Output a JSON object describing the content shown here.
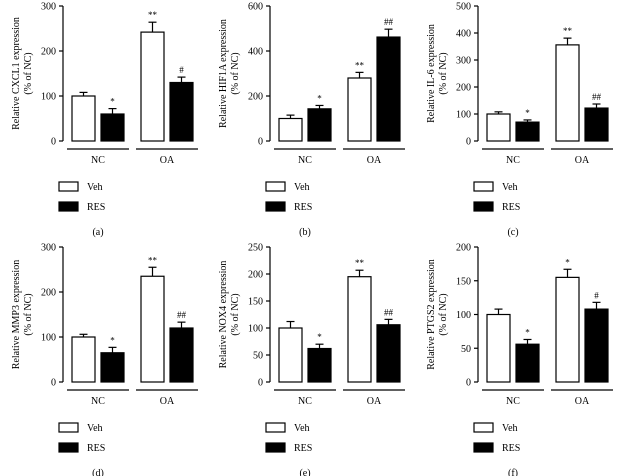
{
  "legend": {
    "veh_label": "Veh",
    "res_label": "RES"
  },
  "colors": {
    "veh": "#ffffff",
    "res": "#000000",
    "axis": "#000000"
  },
  "chart_data": [
    {
      "type": "bar",
      "panel_label": "(a)",
      "ylabel": [
        "Relative CXCL1 expression",
        "(% of NC)"
      ],
      "ylim": [
        0,
        300
      ],
      "yticks": [
        0,
        100,
        200,
        300
      ],
      "groups": [
        "NC",
        "OA"
      ],
      "series": [
        {
          "name": "Veh",
          "values": [
            100,
            242
          ],
          "errors": [
            8,
            22
          ],
          "marks": [
            "",
            "**"
          ]
        },
        {
          "name": "RES",
          "values": [
            60,
            130
          ],
          "errors": [
            12,
            12
          ],
          "marks": [
            "*",
            "#"
          ]
        }
      ]
    },
    {
      "type": "bar",
      "panel_label": "(b)",
      "ylabel": [
        "Relative HIF1A expression",
        "(% of NC)"
      ],
      "ylim": [
        0,
        600
      ],
      "yticks": [
        0,
        200,
        400,
        600
      ],
      "groups": [
        "NC",
        "OA"
      ],
      "series": [
        {
          "name": "Veh",
          "values": [
            100,
            280
          ],
          "errors": [
            15,
            25
          ],
          "marks": [
            "",
            "**"
          ]
        },
        {
          "name": "RES",
          "values": [
            143,
            462
          ],
          "errors": [
            15,
            35
          ],
          "marks": [
            "*",
            "##"
          ]
        }
      ]
    },
    {
      "type": "bar",
      "panel_label": "(c)",
      "ylabel": [
        "Relative IL-6 expression",
        "(% of NC)"
      ],
      "ylim": [
        0,
        500
      ],
      "yticks": [
        0,
        100,
        200,
        300,
        400,
        500
      ],
      "groups": [
        "NC",
        "OA"
      ],
      "series": [
        {
          "name": "Veh",
          "values": [
            100,
            356
          ],
          "errors": [
            8,
            25
          ],
          "marks": [
            "",
            "**"
          ]
        },
        {
          "name": "RES",
          "values": [
            70,
            122
          ],
          "errors": [
            8,
            15
          ],
          "marks": [
            "*",
            "##"
          ]
        }
      ]
    },
    {
      "type": "bar",
      "panel_label": "(d)",
      "ylabel": [
        "Relative MMP3 expression",
        "(% of NC)"
      ],
      "ylim": [
        0,
        300
      ],
      "yticks": [
        0,
        100,
        200,
        300
      ],
      "groups": [
        "NC",
        "OA"
      ],
      "series": [
        {
          "name": "Veh",
          "values": [
            100,
            235
          ],
          "errors": [
            6,
            20
          ],
          "marks": [
            "",
            "**"
          ]
        },
        {
          "name": "RES",
          "values": [
            65,
            120
          ],
          "errors": [
            12,
            13
          ],
          "marks": [
            "*",
            "##"
          ]
        }
      ]
    },
    {
      "type": "bar",
      "panel_label": "(e)",
      "ylabel": [
        "Relative NOX4 expression",
        "(% of NC)"
      ],
      "ylim": [
        0,
        250
      ],
      "yticks": [
        0,
        50,
        100,
        150,
        200,
        250
      ],
      "groups": [
        "NC",
        "OA"
      ],
      "series": [
        {
          "name": "Veh",
          "values": [
            100,
            195
          ],
          "errors": [
            12,
            12
          ],
          "marks": [
            "",
            "**"
          ]
        },
        {
          "name": "RES",
          "values": [
            62,
            106
          ],
          "errors": [
            8,
            10
          ],
          "marks": [
            "*",
            "##"
          ]
        }
      ]
    },
    {
      "type": "bar",
      "panel_label": "(f)",
      "ylabel": [
        "Relative PTGS2 expression",
        "(% of NC)"
      ],
      "ylim": [
        0,
        200
      ],
      "yticks": [
        0,
        50,
        100,
        150,
        200
      ],
      "groups": [
        "NC",
        "OA"
      ],
      "series": [
        {
          "name": "Veh",
          "values": [
            100,
            155
          ],
          "errors": [
            8,
            12
          ],
          "marks": [
            "",
            "*"
          ]
        },
        {
          "name": "RES",
          "values": [
            56,
            108
          ],
          "errors": [
            7,
            10
          ],
          "marks": [
            "*",
            "#"
          ]
        }
      ]
    }
  ]
}
